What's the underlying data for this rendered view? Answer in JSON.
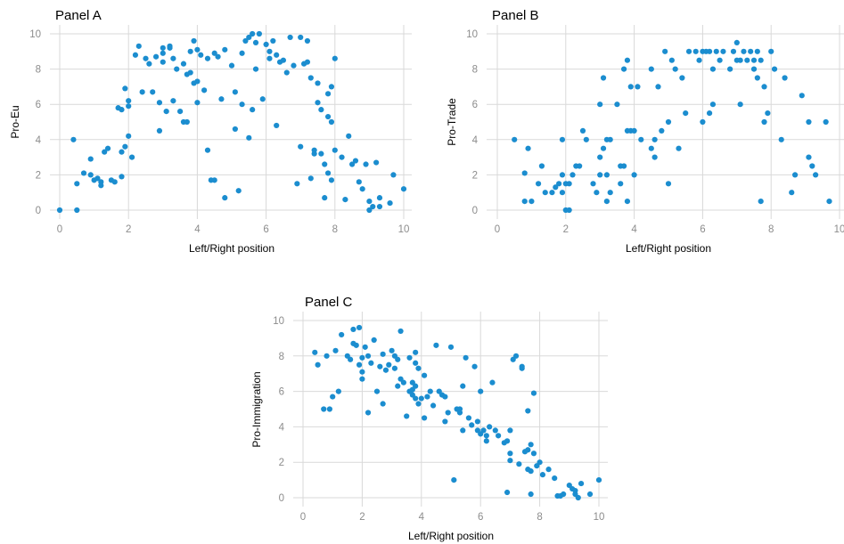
{
  "colors": {
    "point": "#1b8dcf",
    "grid": "#d9d9d9"
  },
  "chart_data": [
    {
      "type": "scatter",
      "title": "Panel A",
      "xlabel": "Left/Right position",
      "ylabel": "Pro-Eu",
      "xlim": [
        0,
        10
      ],
      "ylim": [
        0,
        10
      ],
      "xticks": [
        0,
        2,
        4,
        6,
        8,
        10
      ],
      "yticks": [
        0,
        2,
        4,
        6,
        8,
        10
      ],
      "grid": true,
      "points": [
        [
          0.0,
          0.0
        ],
        [
          0.4,
          4.0
        ],
        [
          0.5,
          0.0
        ],
        [
          0.5,
          1.5
        ],
        [
          0.7,
          2.1
        ],
        [
          0.9,
          2.0
        ],
        [
          0.9,
          2.9
        ],
        [
          1.0,
          1.7
        ],
        [
          1.1,
          1.8
        ],
        [
          1.2,
          1.6
        ],
        [
          1.2,
          1.4
        ],
        [
          1.3,
          3.3
        ],
        [
          1.4,
          3.5
        ],
        [
          1.5,
          1.7
        ],
        [
          1.6,
          1.6
        ],
        [
          1.7,
          5.8
        ],
        [
          1.8,
          3.3
        ],
        [
          1.8,
          5.7
        ],
        [
          1.8,
          1.9
        ],
        [
          1.9,
          3.6
        ],
        [
          1.9,
          6.9
        ],
        [
          2.0,
          6.2
        ],
        [
          2.0,
          4.2
        ],
        [
          2.0,
          5.9
        ],
        [
          2.1,
          3.0
        ],
        [
          2.2,
          8.8
        ],
        [
          2.3,
          9.3
        ],
        [
          2.4,
          6.7
        ],
        [
          2.5,
          8.6
        ],
        [
          2.6,
          8.3
        ],
        [
          2.7,
          6.7
        ],
        [
          2.8,
          8.7
        ],
        [
          2.9,
          6.1
        ],
        [
          2.9,
          4.5
        ],
        [
          3.0,
          9.2
        ],
        [
          3.0,
          8.9
        ],
        [
          3.0,
          8.4
        ],
        [
          3.1,
          5.6
        ],
        [
          3.2,
          9.2
        ],
        [
          3.2,
          9.3
        ],
        [
          3.3,
          8.6
        ],
        [
          3.3,
          6.2
        ],
        [
          3.4,
          8.0
        ],
        [
          3.5,
          5.6
        ],
        [
          3.6,
          8.3
        ],
        [
          3.6,
          5.0
        ],
        [
          3.7,
          7.7
        ],
        [
          3.7,
          5.0
        ],
        [
          3.8,
          7.8
        ],
        [
          3.8,
          9.0
        ],
        [
          3.9,
          9.6
        ],
        [
          3.9,
          7.2
        ],
        [
          4.0,
          7.3
        ],
        [
          4.0,
          9.1
        ],
        [
          4.0,
          6.1
        ],
        [
          4.1,
          8.8
        ],
        [
          4.2,
          6.8
        ],
        [
          4.3,
          8.6
        ],
        [
          4.3,
          3.4
        ],
        [
          4.4,
          1.7
        ],
        [
          4.5,
          8.9
        ],
        [
          4.5,
          1.7
        ],
        [
          4.6,
          8.7
        ],
        [
          4.7,
          6.3
        ],
        [
          4.8,
          9.1
        ],
        [
          4.8,
          0.7
        ],
        [
          5.0,
          8.2
        ],
        [
          5.1,
          6.7
        ],
        [
          5.1,
          4.6
        ],
        [
          5.2,
          1.1
        ],
        [
          5.3,
          8.9
        ],
        [
          5.3,
          6.0
        ],
        [
          5.4,
          9.6
        ],
        [
          5.5,
          9.8
        ],
        [
          5.5,
          4.1
        ],
        [
          5.6,
          10.0
        ],
        [
          5.6,
          5.7
        ],
        [
          5.7,
          9.5
        ],
        [
          5.7,
          8.0
        ],
        [
          5.8,
          10.0
        ],
        [
          5.9,
          6.3
        ],
        [
          6.0,
          9.4
        ],
        [
          6.1,
          9.0
        ],
        [
          6.1,
          8.6
        ],
        [
          6.2,
          9.6
        ],
        [
          6.3,
          8.8
        ],
        [
          6.3,
          4.8
        ],
        [
          6.4,
          8.4
        ],
        [
          6.5,
          8.5
        ],
        [
          6.6,
          7.8
        ],
        [
          6.7,
          9.8
        ],
        [
          6.8,
          8.2
        ],
        [
          6.9,
          1.5
        ],
        [
          7.0,
          9.8
        ],
        [
          7.0,
          3.6
        ],
        [
          7.1,
          8.3
        ],
        [
          7.2,
          9.6
        ],
        [
          7.2,
          8.4
        ],
        [
          7.3,
          7.5
        ],
        [
          7.3,
          1.8
        ],
        [
          7.4,
          3.2
        ],
        [
          7.4,
          3.4
        ],
        [
          7.5,
          7.2
        ],
        [
          7.5,
          6.1
        ],
        [
          7.6,
          5.7
        ],
        [
          7.6,
          3.2
        ],
        [
          7.7,
          2.6
        ],
        [
          7.7,
          0.7
        ],
        [
          7.8,
          2.1
        ],
        [
          7.8,
          5.3
        ],
        [
          7.8,
          6.6
        ],
        [
          7.9,
          1.7
        ],
        [
          7.9,
          7.0
        ],
        [
          7.9,
          5.0
        ],
        [
          8.0,
          8.6
        ],
        [
          8.0,
          3.4
        ],
        [
          8.2,
          3.0
        ],
        [
          8.3,
          0.6
        ],
        [
          8.4,
          4.2
        ],
        [
          8.5,
          2.6
        ],
        [
          8.6,
          2.8
        ],
        [
          8.7,
          1.6
        ],
        [
          8.8,
          1.2
        ],
        [
          8.9,
          2.6
        ],
        [
          9.0,
          0.5
        ],
        [
          9.0,
          0.0
        ],
        [
          9.1,
          0.2
        ],
        [
          9.2,
          2.7
        ],
        [
          9.3,
          0.7
        ],
        [
          9.3,
          0.2
        ],
        [
          9.6,
          0.4
        ],
        [
          9.7,
          2.0
        ],
        [
          10.0,
          1.2
        ]
      ]
    },
    {
      "type": "scatter",
      "title": "Panel B",
      "xlabel": "Left/Right position",
      "ylabel": "Pro-Trade",
      "xlim": [
        0,
        10
      ],
      "ylim": [
        0,
        10
      ],
      "xticks": [
        0,
        2,
        4,
        6,
        8,
        10
      ],
      "yticks": [
        0,
        2,
        4,
        6,
        8,
        10
      ],
      "grid": true,
      "points": [
        [
          0.5,
          4.0
        ],
        [
          0.8,
          0.5
        ],
        [
          0.8,
          2.1
        ],
        [
          0.9,
          3.5
        ],
        [
          1.0,
          0.5
        ],
        [
          1.2,
          1.5
        ],
        [
          1.3,
          2.5
        ],
        [
          1.4,
          1.0
        ],
        [
          1.6,
          1.0
        ],
        [
          1.7,
          1.3
        ],
        [
          1.8,
          1.5
        ],
        [
          1.9,
          4.0
        ],
        [
          1.9,
          2.0
        ],
        [
          1.9,
          1.0
        ],
        [
          2.0,
          0.0
        ],
        [
          2.0,
          1.5
        ],
        [
          2.1,
          0.0
        ],
        [
          2.1,
          1.5
        ],
        [
          2.2,
          2.0
        ],
        [
          2.3,
          2.5
        ],
        [
          2.4,
          2.5
        ],
        [
          2.5,
          4.5
        ],
        [
          2.6,
          4.0
        ],
        [
          2.8,
          1.5
        ],
        [
          2.9,
          1.0
        ],
        [
          3.0,
          6.0
        ],
        [
          3.0,
          3.0
        ],
        [
          3.0,
          2.0
        ],
        [
          3.1,
          7.5
        ],
        [
          3.1,
          3.5
        ],
        [
          3.2,
          4.0
        ],
        [
          3.2,
          2.0
        ],
        [
          3.2,
          0.5
        ],
        [
          3.3,
          4.0
        ],
        [
          3.3,
          1.0
        ],
        [
          3.5,
          6.0
        ],
        [
          3.6,
          2.5
        ],
        [
          3.6,
          1.5
        ],
        [
          3.7,
          2.5
        ],
        [
          3.7,
          8.0
        ],
        [
          3.8,
          8.5
        ],
        [
          3.8,
          4.5
        ],
        [
          3.8,
          0.5
        ],
        [
          3.9,
          4.5
        ],
        [
          3.9,
          7.0
        ],
        [
          4.0,
          4.5
        ],
        [
          4.0,
          2.0
        ],
        [
          4.1,
          7.0
        ],
        [
          4.2,
          4.0
        ],
        [
          4.5,
          3.5
        ],
        [
          4.5,
          8.0
        ],
        [
          4.6,
          4.0
        ],
        [
          4.6,
          3.0
        ],
        [
          4.7,
          7.0
        ],
        [
          4.8,
          4.5
        ],
        [
          4.9,
          9.0
        ],
        [
          5.0,
          1.5
        ],
        [
          5.0,
          5.0
        ],
        [
          5.1,
          8.5
        ],
        [
          5.2,
          8.0
        ],
        [
          5.3,
          3.5
        ],
        [
          5.4,
          7.5
        ],
        [
          5.5,
          5.5
        ],
        [
          5.6,
          9.0
        ],
        [
          5.8,
          9.0
        ],
        [
          5.9,
          8.5
        ],
        [
          6.0,
          9.0
        ],
        [
          6.0,
          5.0
        ],
        [
          6.1,
          9.0
        ],
        [
          6.2,
          5.5
        ],
        [
          6.2,
          9.0
        ],
        [
          6.3,
          6.0
        ],
        [
          6.3,
          8.0
        ],
        [
          6.4,
          9.0
        ],
        [
          6.5,
          8.5
        ],
        [
          6.6,
          9.0
        ],
        [
          6.8,
          8.0
        ],
        [
          6.9,
          9.0
        ],
        [
          7.0,
          8.5
        ],
        [
          7.0,
          9.5
        ],
        [
          7.1,
          6.0
        ],
        [
          7.1,
          8.5
        ],
        [
          7.2,
          9.0
        ],
        [
          7.3,
          8.5
        ],
        [
          7.4,
          9.0
        ],
        [
          7.5,
          8.0
        ],
        [
          7.5,
          8.5
        ],
        [
          7.6,
          7.5
        ],
        [
          7.6,
          9.0
        ],
        [
          7.7,
          0.5
        ],
        [
          7.7,
          8.5
        ],
        [
          7.8,
          5.0
        ],
        [
          7.8,
          7.0
        ],
        [
          7.9,
          5.5
        ],
        [
          8.0,
          9.0
        ],
        [
          8.1,
          8.0
        ],
        [
          8.3,
          4.0
        ],
        [
          8.4,
          7.5
        ],
        [
          8.6,
          1.0
        ],
        [
          8.7,
          2.0
        ],
        [
          8.9,
          6.5
        ],
        [
          9.1,
          5.0
        ],
        [
          9.1,
          3.0
        ],
        [
          9.2,
          2.5
        ],
        [
          9.3,
          2.0
        ],
        [
          9.6,
          5.0
        ],
        [
          9.7,
          0.5
        ]
      ]
    },
    {
      "type": "scatter",
      "title": "Panel C",
      "xlabel": "Left/Right position",
      "ylabel": "Pro-Immigration",
      "xlim": [
        0,
        10
      ],
      "ylim": [
        0,
        10
      ],
      "xticks": [
        0,
        2,
        4,
        6,
        8,
        10
      ],
      "yticks": [
        0,
        2,
        4,
        6,
        8,
        10
      ],
      "grid": true,
      "points": [
        [
          0.4,
          8.2
        ],
        [
          0.5,
          7.5
        ],
        [
          0.7,
          5.0
        ],
        [
          0.8,
          8.0
        ],
        [
          0.9,
          5.0
        ],
        [
          1.0,
          5.7
        ],
        [
          1.1,
          8.3
        ],
        [
          1.2,
          6.0
        ],
        [
          1.3,
          9.2
        ],
        [
          1.5,
          8.0
        ],
        [
          1.6,
          7.8
        ],
        [
          1.7,
          9.5
        ],
        [
          1.7,
          8.7
        ],
        [
          1.8,
          8.6
        ],
        [
          1.9,
          9.6
        ],
        [
          1.9,
          7.5
        ],
        [
          2.0,
          7.9
        ],
        [
          2.0,
          7.1
        ],
        [
          2.0,
          6.7
        ],
        [
          2.1,
          8.5
        ],
        [
          2.2,
          4.8
        ],
        [
          2.2,
          8.0
        ],
        [
          2.3,
          7.6
        ],
        [
          2.4,
          8.9
        ],
        [
          2.5,
          6.0
        ],
        [
          2.6,
          7.4
        ],
        [
          2.7,
          8.1
        ],
        [
          2.7,
          5.3
        ],
        [
          2.8,
          7.2
        ],
        [
          2.9,
          7.5
        ],
        [
          3.0,
          8.3
        ],
        [
          3.1,
          8.0
        ],
        [
          3.1,
          7.3
        ],
        [
          3.2,
          7.8
        ],
        [
          3.2,
          6.3
        ],
        [
          3.3,
          9.4
        ],
        [
          3.3,
          6.7
        ],
        [
          3.4,
          6.5
        ],
        [
          3.5,
          4.6
        ],
        [
          3.6,
          7.9
        ],
        [
          3.6,
          6.0
        ],
        [
          3.7,
          6.5
        ],
        [
          3.7,
          6.1
        ],
        [
          3.7,
          5.8
        ],
        [
          3.8,
          8.2
        ],
        [
          3.8,
          7.6
        ],
        [
          3.8,
          6.3
        ],
        [
          3.8,
          5.6
        ],
        [
          3.9,
          5.3
        ],
        [
          3.9,
          7.3
        ],
        [
          4.0,
          5.6
        ],
        [
          4.1,
          6.9
        ],
        [
          4.1,
          4.5
        ],
        [
          4.2,
          5.7
        ],
        [
          4.3,
          6.0
        ],
        [
          4.4,
          5.2
        ],
        [
          4.5,
          8.6
        ],
        [
          4.6,
          6.0
        ],
        [
          4.7,
          5.8
        ],
        [
          4.8,
          4.3
        ],
        [
          4.8,
          5.7
        ],
        [
          4.9,
          4.8
        ],
        [
          5.0,
          8.5
        ],
        [
          5.1,
          1.0
        ],
        [
          5.2,
          5.0
        ],
        [
          5.3,
          5.0
        ],
        [
          5.3,
          4.8
        ],
        [
          5.4,
          6.3
        ],
        [
          5.4,
          3.8
        ],
        [
          5.5,
          7.9
        ],
        [
          5.6,
          4.5
        ],
        [
          5.7,
          4.1
        ],
        [
          5.8,
          7.4
        ],
        [
          5.9,
          4.3
        ],
        [
          5.9,
          3.8
        ],
        [
          6.0,
          6.0
        ],
        [
          6.0,
          3.6
        ],
        [
          6.1,
          3.8
        ],
        [
          6.2,
          3.5
        ],
        [
          6.2,
          3.2
        ],
        [
          6.3,
          4.0
        ],
        [
          6.4,
          6.5
        ],
        [
          6.5,
          3.8
        ],
        [
          6.6,
          3.5
        ],
        [
          6.8,
          3.1
        ],
        [
          6.9,
          0.3
        ],
        [
          6.9,
          3.2
        ],
        [
          7.0,
          2.5
        ],
        [
          7.0,
          3.8
        ],
        [
          7.0,
          2.1
        ],
        [
          7.1,
          7.8
        ],
        [
          7.2,
          8.0
        ],
        [
          7.3,
          1.9
        ],
        [
          7.4,
          7.4
        ],
        [
          7.4,
          7.3
        ],
        [
          7.5,
          2.6
        ],
        [
          7.6,
          2.7
        ],
        [
          7.6,
          4.9
        ],
        [
          7.6,
          1.6
        ],
        [
          7.7,
          3.0
        ],
        [
          7.7,
          1.5
        ],
        [
          7.7,
          0.2
        ],
        [
          7.8,
          2.5
        ],
        [
          7.8,
          5.9
        ],
        [
          7.9,
          1.8
        ],
        [
          8.0,
          2.0
        ],
        [
          8.1,
          1.3
        ],
        [
          8.3,
          1.6
        ],
        [
          8.5,
          1.1
        ],
        [
          8.6,
          0.1
        ],
        [
          8.7,
          0.1
        ],
        [
          8.8,
          0.2
        ],
        [
          9.0,
          0.7
        ],
        [
          9.1,
          0.5
        ],
        [
          9.2,
          0.2
        ],
        [
          9.2,
          0.4
        ],
        [
          9.3,
          0.0
        ],
        [
          9.4,
          0.8
        ],
        [
          9.7,
          0.2
        ],
        [
          10.0,
          1.0
        ]
      ]
    }
  ]
}
